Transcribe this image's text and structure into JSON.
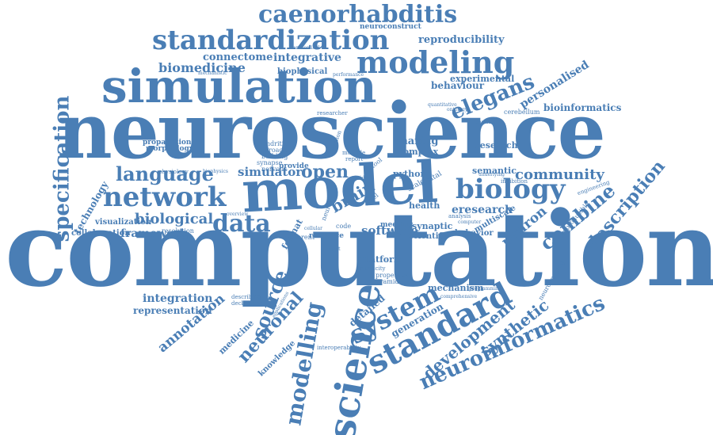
{
  "words": {
    "computational": "computational",
    "neuroscience": "neuroscience",
    "simulation": "simulation",
    "model": "model",
    "standardization": "standardization",
    "modeling": "modeling",
    "caenorhabditis": "caenorhabditis",
    "network": "network",
    "biology": "biology",
    "language": "language",
    "science": "science",
    "standard": "standard",
    "neuroinformatics": "neuroinformatics",
    "specification": "specification",
    "elegans": "elegans",
    "data": "data",
    "open": "open",
    "system": "system",
    "modelling": "modelling",
    "reproducibility": "reproducibility",
    "biomedicine": "biomedicine",
    "connectome": "connectome",
    "integrative": "integrative",
    "community": "community",
    "combine": "combine",
    "description": "description",
    "neuron": "neuron",
    "biological": "biological",
    "framework": "framework",
    "simulator": "simulator",
    "brain": "brain",
    "eresearch": "eresearch",
    "source": "source",
    "neuronal": "neuronal",
    "development": "development",
    "synthetic": "synthetic",
    "annotation": "annotation",
    "integration": "integration",
    "representation": "representation",
    "personalised": "personalised",
    "bioinformatics": "bioinformatics",
    "software": "software",
    "research": "research",
    "experimental": "experimental",
    "behaviour": "behaviour",
    "biophysical": "biophysical",
    "technology": "technology",
    "collaboration": "collaboration",
    "visualization": "visualization",
    "sharing": "sharing",
    "complex": "complex",
    "python": "python",
    "health": "health",
    "mechanism": "mechanism",
    "generation": "generation",
    "detailed": "detailed",
    "semantic": "semantic",
    "multiscale": "multiscale",
    "behavior": "behavior",
    "synaptic": "synaptic",
    "scientific": "scientific",
    "platform": "platform",
    "propagation": "propagation",
    "morphology": "morphology",
    "knowledge": "knowledge",
    "medicine": "medicine",
    "neuroconstruct": "neuroconstruct",
    "resolution": "resolution",
    "neurology": "neurology",
    "meeting": "meeting",
    "resource": "resource",
    "format": "format",
    "provide": "provide",
    "dendritic": "dendritic",
    "approach": "approach",
    "building": "building",
    "synapse": "synapse",
    "nervous": "nervous",
    "physiology": "physiology",
    "researcher": "researcher",
    "cerebellum": "cerebellum",
    "analysis": "analysis",
    "properties": "properties",
    "pyramidal": "pyramidal",
    "interoperability": "interoperability",
    "describing": "describing",
    "declarative": "declarative",
    "neuroimaging": "neuroimaging",
    "reproducible": "reproducible",
    "engineering": "engineering",
    "inhibition": "inhibition",
    "digital": "digital",
    "scale": "scale",
    "level": "level",
    "code": "code",
    "different": "different",
    "multiple": "multiple",
    "report": "report",
    "plasticity": "plasticity",
    "overview": "overview",
    "cellular": "cellular",
    "performance": "performance",
    "anatomical": "anatomical",
    "mechanistic": "mechanistic",
    "biophysics": "biophysics",
    "programming": "programming",
    "comprehensive": "comprehensive",
    "tool": "tool",
    "neural": "neural",
    "version": "version",
    "project": "project",
    "applications": "applications",
    "ontology": "ontology",
    "computer": "computer",
    "quantitative": "quantitative",
    "physiome": "physiome",
    "underlying": "underlying",
    "grid": "grid"
  }
}
